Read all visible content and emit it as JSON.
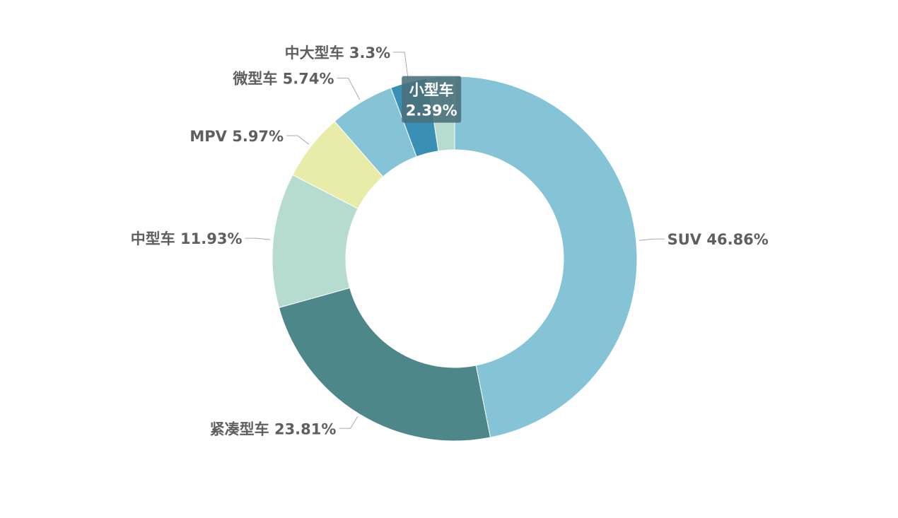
{
  "chart_data": {
    "type": "pie",
    "variant": "donut",
    "title": "",
    "legend": "none",
    "start": "top",
    "direction": "clockwise",
    "slices": [
      {
        "name": "SUV",
        "value": 46.86,
        "label": "SUV 46.86%",
        "color": "#85c3d6"
      },
      {
        "name": "紧凑型车",
        "value": 23.81,
        "label": "紧凑型车 23.81%",
        "color": "#4e878a"
      },
      {
        "name": "中型车",
        "value": 11.93,
        "label": "中型车 11.93%",
        "color": "#b5dcce"
      },
      {
        "name": "MPV",
        "value": 5.97,
        "label": "MPV 5.97%",
        "color": "#e9eba8"
      },
      {
        "name": "微型车",
        "value": 5.74,
        "label": "微型车 5.74%",
        "color": "#85c3d6"
      },
      {
        "name": "中大型车",
        "value": 3.3,
        "label": "中大型车 3.3%",
        "color": "#3a8fb5"
      },
      {
        "name": "小型车",
        "value": 2.39,
        "label": "",
        "color": "#b5dcce"
      }
    ],
    "tooltip": {
      "slice": "小型车",
      "name": "小型车",
      "value": "2.39%",
      "background": "#4a6f7a"
    }
  }
}
